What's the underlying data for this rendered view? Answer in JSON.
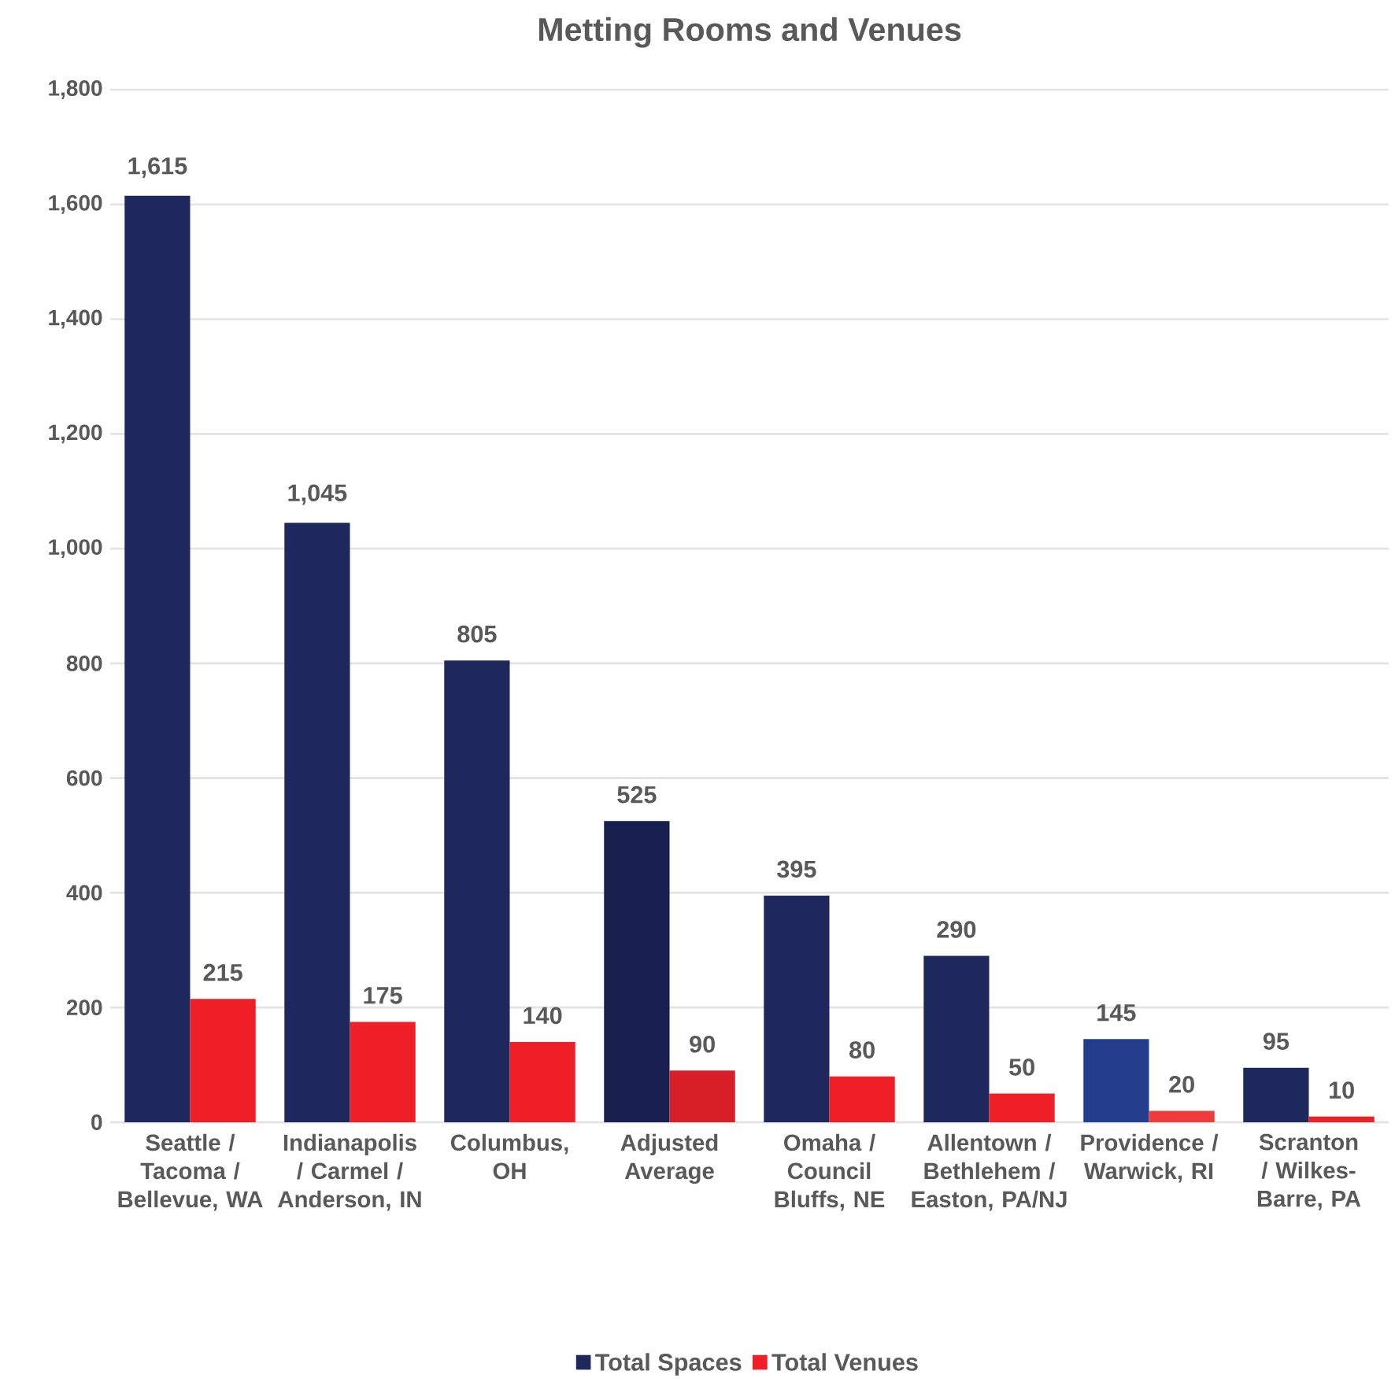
{
  "chart_data": {
    "type": "bar",
    "title": "Metting Rooms and Venues",
    "categories": [
      "Seattle / Tacoma / Bellevue, WA",
      "Indianapolis / Carmel / Anderson, IN",
      "Columbus, OH",
      "Adjusted Average",
      "Omaha / Council Bluffs, NE",
      "Allentown / Bethlehem / Easton, PA/NJ",
      "Providence / Warwick, RI",
      "Scranton / Wilkes-Barre, PA"
    ],
    "series": [
      {
        "name": "Total Spaces",
        "color": "#1f285c",
        "colors": [
          "#1f285c",
          "#1f285c",
          "#1f285c",
          "#161f4d",
          "#1f285c",
          "#1f285c",
          "#233e8c",
          "#1f285c"
        ],
        "values": [
          1615,
          1045,
          805,
          525,
          395,
          290,
          145,
          95
        ],
        "value_labels": [
          "1,615",
          "1,045",
          "805",
          "525",
          "395",
          "290",
          "145",
          "95"
        ]
      },
      {
        "name": "Total Venues",
        "color": "#ee1f26",
        "colors": [
          "#ee1f26",
          "#ee1f26",
          "#ee1f26",
          "#d81e27",
          "#ee1f26",
          "#ee1f26",
          "#ee3b3b",
          "#ee1f26"
        ],
        "values": [
          215,
          175,
          140,
          90,
          80,
          50,
          20,
          10
        ],
        "value_labels": [
          "215",
          "175",
          "140",
          "90",
          "80",
          "50",
          "20",
          "10"
        ]
      }
    ],
    "ylim": [
      0,
      1800
    ],
    "yticks": [
      0,
      200,
      400,
      600,
      800,
      {
        "value": 1000,
        "label": "1,000"
      },
      {
        "value": 1200,
        "label": "1,200"
      },
      {
        "value": 1400,
        "label": "1,400"
      },
      {
        "value": 1600,
        "label": "1,600"
      },
      {
        "value": 1800,
        "label": "1,800"
      }
    ],
    "grid": "y",
    "legend": "bottom"
  }
}
